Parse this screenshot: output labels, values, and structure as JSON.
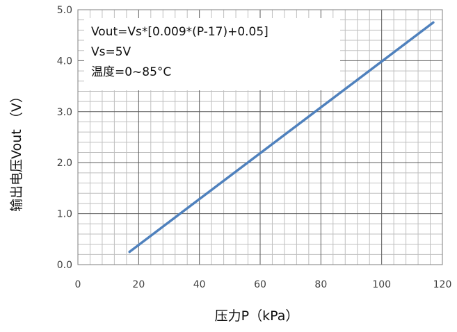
{
  "chart_data": {
    "type": "line",
    "xlabel": "压力P（kPa）",
    "ylabel": "输出电压Vout （V）",
    "xlim": [
      0,
      120
    ],
    "ylim": [
      0.0,
      5.0
    ],
    "x_ticks": [
      "0",
      "20",
      "40",
      "60",
      "80",
      "100",
      "120"
    ],
    "y_ticks": [
      "0.0",
      "1.0",
      "2.0",
      "3.0",
      "4.0",
      "5.0"
    ],
    "grid": true,
    "annotations": [
      "Vout=Vs*[0.009*(P-17)+0.05]",
      "Vs=5V",
      "温度=0~85°C"
    ],
    "series": [
      {
        "color": "#4f81bd",
        "x": [
          17,
          117
        ],
        "y": [
          0.25,
          4.75
        ]
      }
    ]
  }
}
